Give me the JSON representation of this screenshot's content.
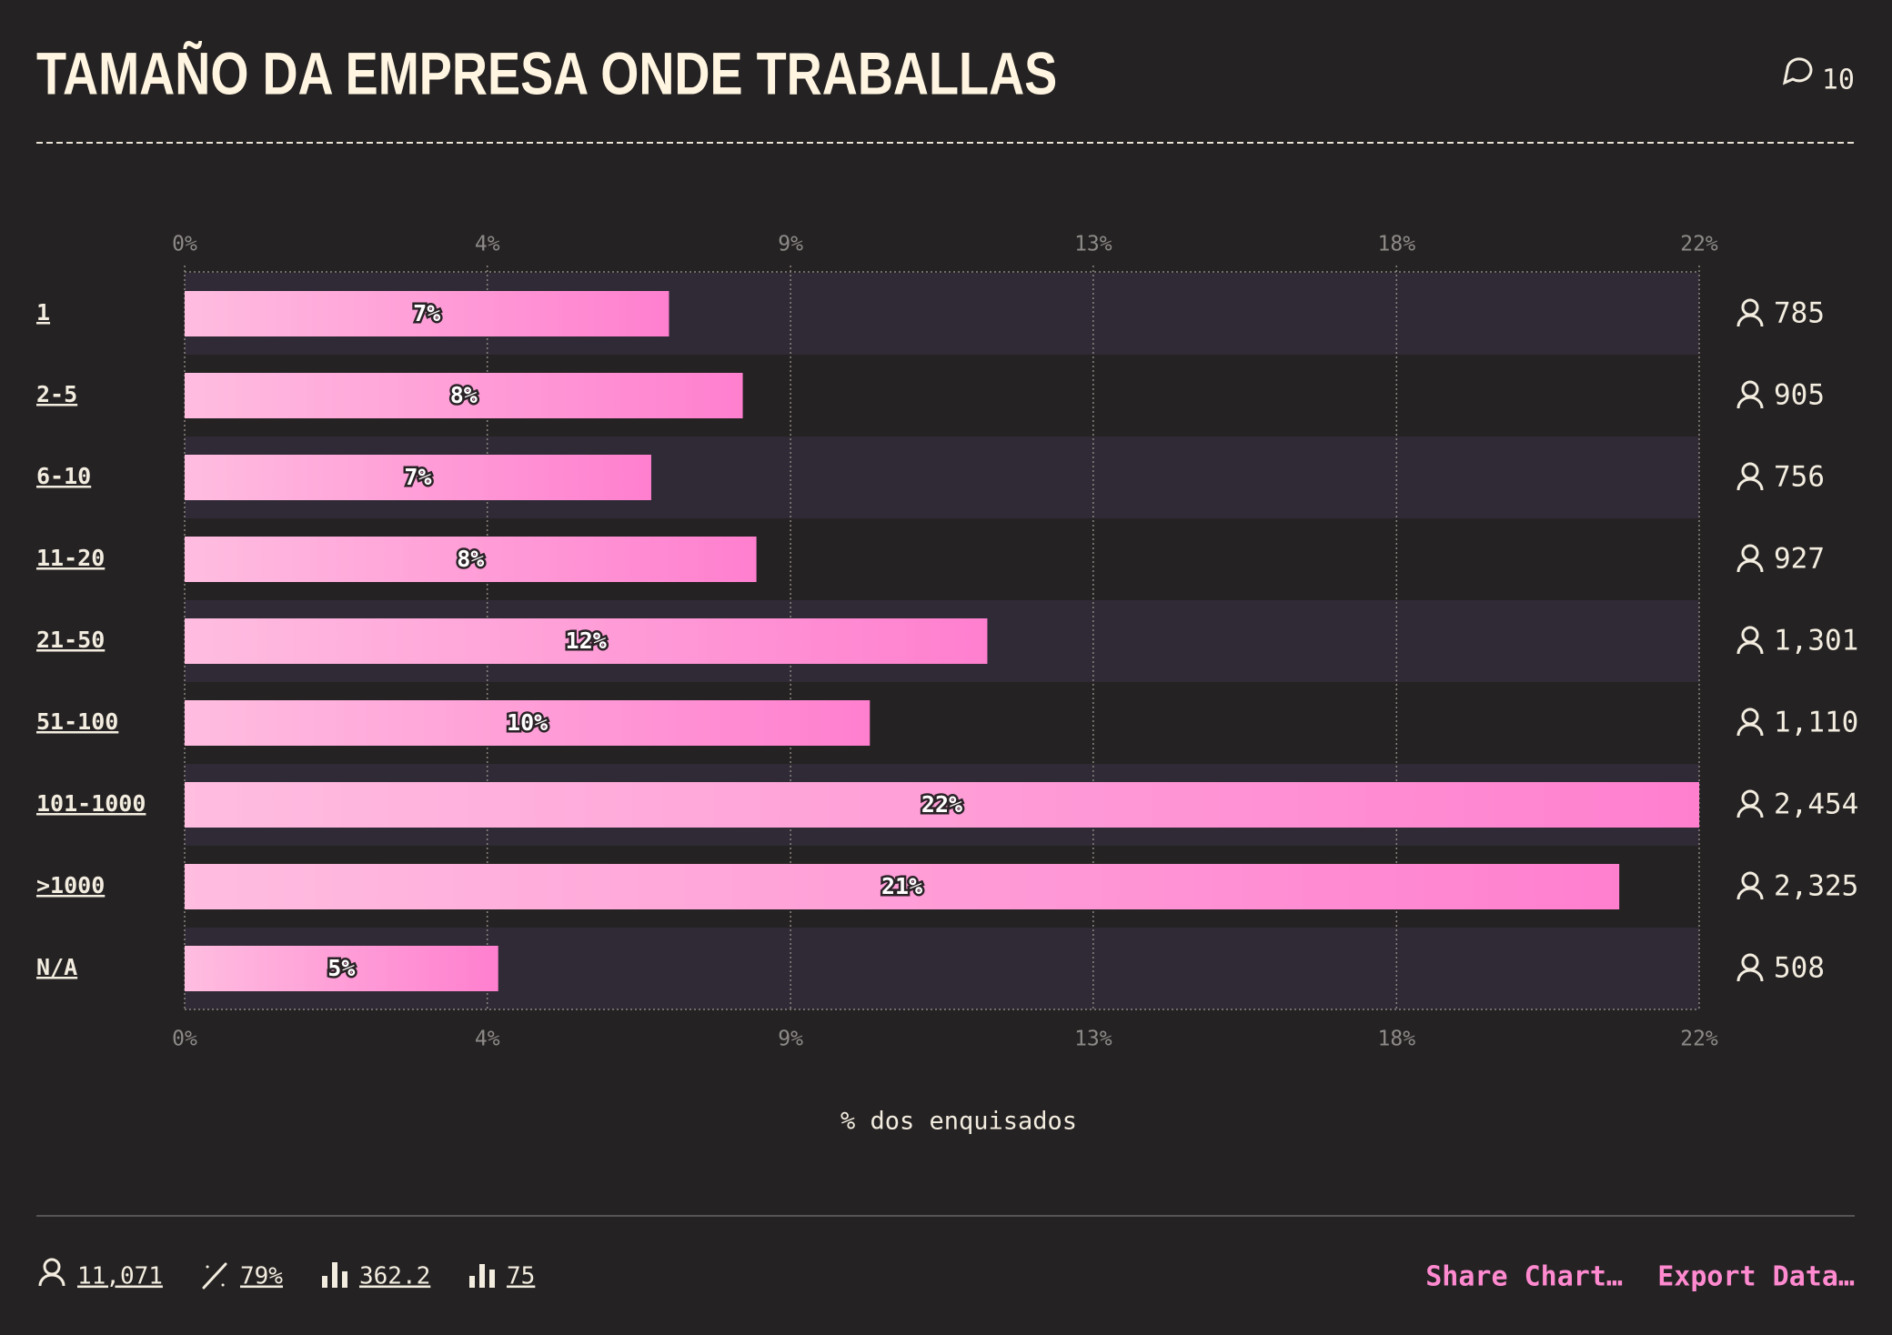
{
  "header": {
    "title": "TAMAÑO DA EMPRESA ONDE TRABALLAS",
    "comments": "10"
  },
  "chart_data": {
    "type": "bar",
    "orientation": "horizontal",
    "categories": [
      "1",
      "2-5",
      "6-10",
      "11-20",
      "21-50",
      "51-100",
      "101-1000",
      ">1000",
      "N/A"
    ],
    "values": [
      7.09,
      8.17,
      6.83,
      8.37,
      11.75,
      10.03,
      22.17,
      21.0,
      4.59
    ],
    "value_labels": [
      "7%",
      "8%",
      "7%",
      "8%",
      "12%",
      "10%",
      "22%",
      "21%",
      "5%"
    ],
    "counts": {
      "values": [
        785,
        905,
        756,
        927,
        1301,
        1110,
        2454,
        2325,
        508
      ],
      "value_labels": [
        "785",
        "905",
        "756",
        "927",
        "1,301",
        "1,110",
        "2,454",
        "2,325",
        "508"
      ]
    },
    "color_start": "#ffbde0",
    "color_end": "#ff7fcf",
    "xlim": [
      0,
      22.17
    ],
    "xticks": [
      {
        "value": 0,
        "label": "0%"
      },
      {
        "value": 4.43,
        "label": "4%"
      },
      {
        "value": 8.87,
        "label": "9%"
      },
      {
        "value": 13.3,
        "label": "13%"
      },
      {
        "value": 17.74,
        "label": "18%"
      },
      {
        "value": 22.17,
        "label": "22%"
      }
    ],
    "xlabel": "% dos enquisados",
    "grid": true
  },
  "footer": {
    "respondents": "11,071",
    "percent": "79%",
    "score": "362.2",
    "rank": "75",
    "share": "Share Chart…",
    "export": "Export Data…"
  }
}
